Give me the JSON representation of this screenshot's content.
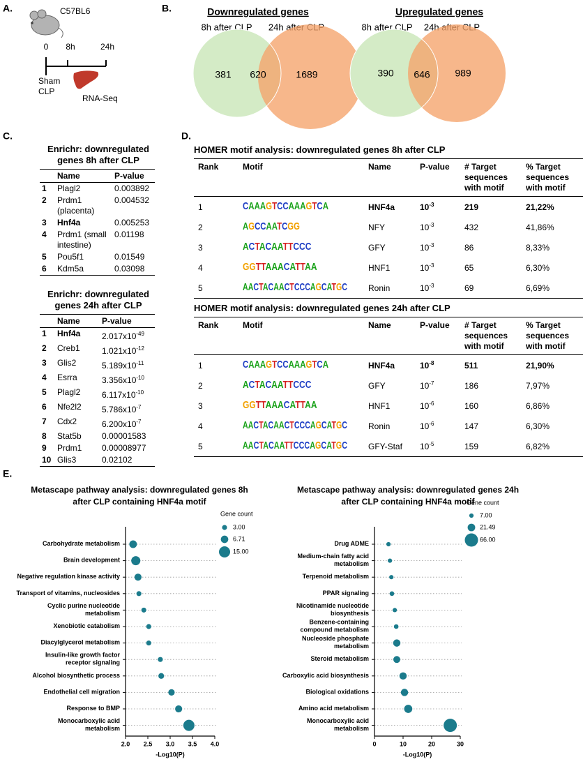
{
  "panel_labels": [
    "A.",
    "B.",
    "C.",
    "D.",
    "E."
  ],
  "panel_a": {
    "strain": "C57BL6",
    "timepoints": [
      "0",
      "8h",
      "24h"
    ],
    "groups": [
      "Sham",
      "CLP"
    ],
    "assay": "RNA-Seq"
  },
  "panel_b": {
    "venns": [
      {
        "title": "Downregulated genes",
        "sets": [
          "8h after CLP",
          "24h after CLP"
        ],
        "counts": [
          381,
          620,
          1689
        ]
      },
      {
        "title": "Upregulated genes",
        "sets": [
          "8h after CLP",
          "24h after CLP"
        ],
        "counts": [
          390,
          646,
          989
        ]
      }
    ]
  },
  "panel_c": {
    "tables": [
      {
        "title": "Enrichr: downregulated genes 8h after CLP",
        "columns": [
          "Name",
          "P-value"
        ],
        "rows": [
          {
            "rank": "1",
            "name": "Plagl2",
            "p": "0.003892"
          },
          {
            "rank": "2",
            "name": "Prdm1 (placenta)",
            "p": "0.004532"
          },
          {
            "rank": "3",
            "name": "Hnf4a",
            "p": "0.005253",
            "bold": true
          },
          {
            "rank": "4",
            "name": "Prdm1 (small intestine)",
            "p": "0.01198"
          },
          {
            "rank": "5",
            "name": "Pou5f1",
            "p": "0.01549"
          },
          {
            "rank": "6",
            "name": "Kdm5a",
            "p": "0.03098"
          }
        ]
      },
      {
        "title": "Enrichr: downregulated genes 24h after CLP",
        "columns": [
          "Name",
          "P-value"
        ],
        "rows": [
          {
            "rank": "1",
            "name": "Hnf4a",
            "p": {
              "base": "2.017x10",
              "exp": "-49"
            },
            "bold": true
          },
          {
            "rank": "2",
            "name": "Creb1",
            "p": {
              "base": "1.021x10",
              "exp": "-12"
            }
          },
          {
            "rank": "3",
            "name": "Glis2",
            "p": {
              "base": "5.189x10",
              "exp": "-11"
            }
          },
          {
            "rank": "4",
            "name": "Esrra",
            "p": {
              "base": "3.356x10",
              "exp": "-10"
            }
          },
          {
            "rank": "5",
            "name": "Plagl2",
            "p": {
              "base": "6.117x10",
              "exp": "-10"
            }
          },
          {
            "rank": "6",
            "name": "Nfe2l2",
            "p": {
              "base": "5.786x10",
              "exp": "-7"
            }
          },
          {
            "rank": "7",
            "name": "Cdx2",
            "p": {
              "base": "6.200x10",
              "exp": "-7"
            }
          },
          {
            "rank": "8",
            "name": "Stat5b",
            "p": "0.00001583"
          },
          {
            "rank": "9",
            "name": "Prdm1",
            "p": "0.00008977"
          },
          {
            "rank": "10",
            "name": "Glis3",
            "p": "0.02102"
          }
        ]
      }
    ]
  },
  "panel_d": {
    "tables": [
      {
        "title": "HOMER motif analysis: downregulated genes 8h after CLP",
        "columns": [
          "Rank",
          "Motif",
          "Name",
          "P-value",
          "# Target sequences with motif",
          "% Target sequences with motif"
        ],
        "rows": [
          {
            "rank": "1",
            "motif": "CAAAGTCCAAAGTCA",
            "name": "HNF4a",
            "p": {
              "base": "10",
              "exp": "-3"
            },
            "count": "219",
            "percent": "21,22%",
            "bold": true
          },
          {
            "rank": "2",
            "motif": "AGCCAATCGG",
            "name": "NFY",
            "p": {
              "base": "10",
              "exp": "-3"
            },
            "count": "432",
            "percent": "41,86%"
          },
          {
            "rank": "3",
            "motif": "ACTACAATTCCC",
            "name": "GFY",
            "p": {
              "base": "10",
              "exp": "-3"
            },
            "count": "86",
            "percent": "8,33%"
          },
          {
            "rank": "4",
            "motif": "GGTTAAACATTAA",
            "name": "HNF1",
            "p": {
              "base": "10",
              "exp": "-3"
            },
            "count": "65",
            "percent": "6,30%"
          },
          {
            "rank": "5",
            "motif": "AACTACAACTCCCAGCATGC",
            "name": "Ronin",
            "p": {
              "base": "10",
              "exp": "-3"
            },
            "count": "69",
            "percent": "6,69%"
          }
        ]
      },
      {
        "title": "HOMER motif analysis: downregulated genes 24h after CLP",
        "columns": [
          "Rank",
          "Motif",
          "Name",
          "P-value",
          "# Target sequences with motif",
          "% Target sequences with motif"
        ],
        "rows": [
          {
            "rank": "1",
            "motif": "CAAAGTCCAAAGTCA",
            "name": "HNF4a",
            "p": {
              "base": "10",
              "exp": "-8"
            },
            "count": "511",
            "percent": "21,90%",
            "bold": true
          },
          {
            "rank": "2",
            "motif": "ACTACAATTCCC",
            "name": "GFY",
            "p": {
              "base": "10",
              "exp": "-7"
            },
            "count": "186",
            "percent": "7,97%"
          },
          {
            "rank": "3",
            "motif": "GGTTAAACATTAA",
            "name": "HNF1",
            "p": {
              "base": "10",
              "exp": "-6"
            },
            "count": "160",
            "percent": "6,86%"
          },
          {
            "rank": "4",
            "motif": "AACTACAACTCCCAGCATGC",
            "name": "Ronin",
            "p": {
              "base": "10",
              "exp": "-6"
            },
            "count": "147",
            "percent": "6,30%"
          },
          {
            "rank": "5",
            "motif": "AACTACAATTCCCAGCATGC",
            "name": "GFY-Staf",
            "p": {
              "base": "10",
              "exp": "-5"
            },
            "count": "159",
            "percent": "6,82%"
          }
        ]
      }
    ]
  },
  "chart_data": [
    {
      "type": "scatter",
      "title": "Metascape pathway analysis: downregulated genes 8h after CLP containing HNF4a motif",
      "xlabel": "-Log10(P)",
      "color": "#1b7b8c",
      "grid": true,
      "categories": [
        "Carbohydrate metabolism",
        "Brain development",
        "Negative regulation kinase activity",
        "Transport of vitamins, nucleosides",
        "Cyclic purine nucleotide\nmetabolism",
        "Xenobiotic catabolism",
        "Diacylglycerol metabolism",
        "Insulin-like growth factor\nreceptor signaling",
        "Alcohol biosynthetic process",
        "Endothelial cell migration",
        "Response to BMP",
        "Monocarboxylic acid\nmetabolism"
      ],
      "values": [
        2.17,
        2.23,
        2.28,
        2.3,
        2.41,
        2.52,
        2.52,
        2.78,
        2.8,
        3.03,
        3.19,
        3.42
      ],
      "sizes": [
        7,
        10,
        6,
        3,
        3,
        3,
        3,
        3,
        4,
        5,
        6,
        15
      ],
      "xlim": [
        2,
        4
      ],
      "xticks": [
        {
          "value": 2,
          "label": "2.0"
        },
        {
          "value": 2.5,
          "label": "2.5"
        },
        {
          "value": 3,
          "label": "3.0"
        },
        {
          "value": 3.5,
          "label": "3.5"
        },
        {
          "value": 4,
          "label": "4.0"
        }
      ],
      "size_legend_title": "Gene count",
      "size_legend": [
        {
          "value": 3,
          "label": "3.00"
        },
        {
          "value": 6.71,
          "label": "6.71"
        },
        {
          "value": 15,
          "label": "15.00"
        }
      ]
    },
    {
      "type": "scatter",
      "title": "Metascape pathway analysis: downregulated genes 24h after CLP containing HNF4a motif",
      "xlabel": "-Log10(P)",
      "color": "#1b7b8c",
      "grid": true,
      "categories": [
        "Drug ADME",
        "Medium-chain fatty acid\nmetabolism",
        "Terpenoid metabolism",
        "PPAR signaling",
        "Nicotinamide nucleotide\nbiosynthesis",
        "Benzene-containing\ncompound metabolism",
        "Nucleoside phosphate\nmetabolism",
        "Steroid metabolism",
        "Carboxylic acid biosynthesis",
        "Biological oxidations",
        "Amino acid metabolism",
        "Monocarboxylic acid\nmetabolism"
      ],
      "values": [
        4.9,
        5.4,
        5.9,
        6.1,
        7.1,
        7.6,
        7.8,
        7.8,
        10,
        10.5,
        11.8,
        26.5
      ],
      "sizes": [
        7,
        7,
        7,
        8,
        7,
        8,
        20,
        18,
        20,
        20,
        25,
        66
      ],
      "xlim": [
        0,
        30
      ],
      "xticks": [
        0,
        10,
        20,
        30
      ],
      "size_legend_title": "Gene count",
      "size_legend": [
        {
          "value": 7,
          "label": "7.00"
        },
        {
          "value": 21.49,
          "label": "21.49"
        },
        {
          "value": 66,
          "label": "66.00"
        }
      ]
    }
  ]
}
